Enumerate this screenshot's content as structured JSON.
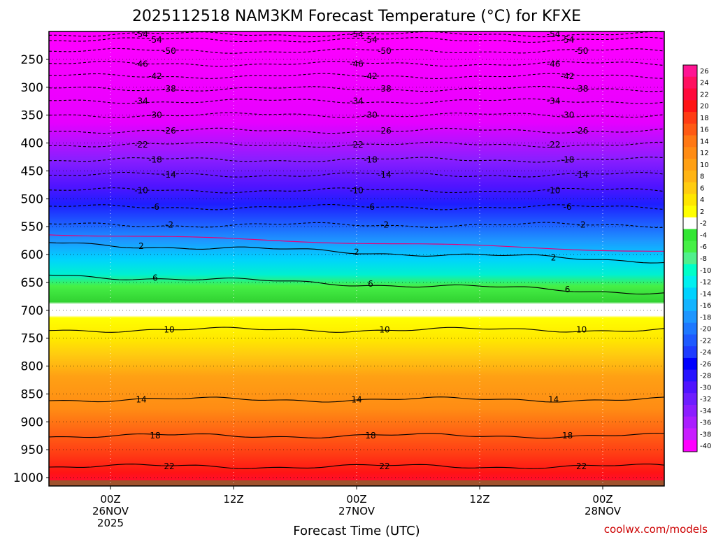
{
  "chart_data": {
    "type": "contour",
    "title": "2025112518 NAM3KM Forecast Temperature (°C) for KFXE",
    "xlabel": "Forecast Time (UTC)",
    "ylabel": "",
    "credit": "coolwx.com/models",
    "x_ticks": [
      {
        "hour": 6,
        "line1": "00Z",
        "line2": "26NOV",
        "line3": "2025"
      },
      {
        "hour": 18,
        "line1": "12Z",
        "line2": "",
        "line3": ""
      },
      {
        "hour": 30,
        "line1": "00Z",
        "line2": "27NOV",
        "line3": ""
      },
      {
        "hour": 42,
        "line1": "12Z",
        "line2": "",
        "line3": ""
      },
      {
        "hour": 54,
        "line1": "00Z",
        "line2": "28NOV",
        "line3": ""
      }
    ],
    "x_range_hours": [
      0,
      60
    ],
    "y_ticks": [
      250,
      300,
      350,
      400,
      450,
      500,
      550,
      600,
      650,
      700,
      750,
      800,
      850,
      900,
      950,
      1000
    ],
    "y_range_hpa": [
      200,
      1015
    ],
    "colorbar": {
      "labels": [
        "26",
        "24",
        "22",
        "20",
        "18",
        "16",
        "14",
        "12",
        "10",
        "8",
        "6",
        "4",
        "2",
        "-2",
        "-4",
        "-6",
        "-8",
        "-10",
        "-12",
        "-14",
        "-16",
        "-18",
        "-20",
        "-22",
        "-24",
        "-26",
        "-28",
        "-30",
        "-32",
        "-34",
        "-36",
        "-38",
        "-40"
      ],
      "colors": [
        "#ff1493",
        "#ff1060",
        "#ff0a3c",
        "#ff1414",
        "#ff3c14",
        "#ff5a14",
        "#ff7814",
        "#ff8c14",
        "#ffa014",
        "#ffb414",
        "#ffcc10",
        "#ffe600",
        "#ffff00",
        "#ffffff",
        "#32e632",
        "#46f046",
        "#50f08c",
        "#00ffc8",
        "#00f0f0",
        "#00d2ff",
        "#14b4ff",
        "#1e96ff",
        "#1e78ff",
        "#1e5aff",
        "#1e3cff",
        "#0000ff",
        "#2814ff",
        "#5014ff",
        "#6e1eff",
        "#8c1eff",
        "#aa1eff",
        "#c81eff",
        "#ff00ff"
      ]
    },
    "isotherms": [
      {
        "label": "-54",
        "p": 205
      },
      {
        "label": "-54",
        "p": 215
      },
      {
        "label": "-50",
        "p": 235
      },
      {
        "label": "-46",
        "p": 258
      },
      {
        "label": "-42",
        "p": 280
      },
      {
        "label": "-38",
        "p": 303
      },
      {
        "label": "-34",
        "p": 325
      },
      {
        "label": "-30",
        "p": 350
      },
      {
        "label": "-26",
        "p": 378
      },
      {
        "label": "-22",
        "p": 403
      },
      {
        "label": "-18",
        "p": 430
      },
      {
        "label": "-14",
        "p": 457
      },
      {
        "label": "-10",
        "p": 485
      },
      {
        "label": "-6",
        "p": 515
      },
      {
        "label": "-2",
        "p": 547
      },
      {
        "label": "2",
        "p": 580
      },
      {
        "label": "6",
        "p": 637
      },
      {
        "label": "10",
        "p": 735
      },
      {
        "label": "14",
        "p": 860
      },
      {
        "label": "18",
        "p": 925
      },
      {
        "label": "22",
        "p": 980
      }
    ]
  }
}
